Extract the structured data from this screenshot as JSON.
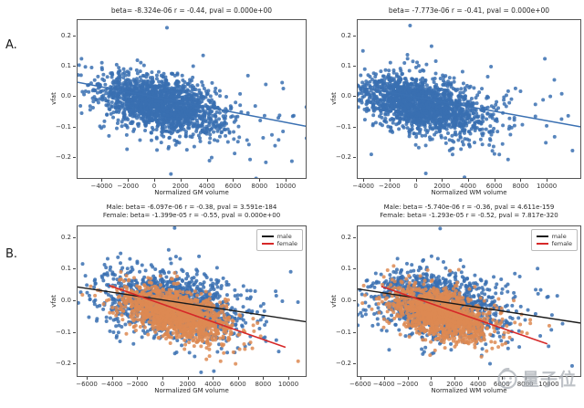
{
  "panels": {
    "a_label": "A.",
    "b_label": "B."
  },
  "watermark": {
    "text": "量子位",
    "icon": "qbitai-face-logo"
  },
  "colors": {
    "scatter_blue": "#3a70b2",
    "scatter_orange": "#dd8a52",
    "male_line": "#1a1a1a",
    "female_line": "#d62828"
  },
  "chart_data": [
    {
      "id": "top-left-gm-all",
      "type": "scatter",
      "title_lines": [
        "beta= -8.324e-06 r = -0.44, pval = 0.000e+00"
      ],
      "xlabel": "Normalized GM volume",
      "ylabel": "vfat",
      "xlim": [
        -5900,
        11450
      ],
      "ylim": [
        -0.265,
        0.253
      ],
      "grid": false,
      "xticks": [
        {
          "v": -4000,
          "label": "−4000"
        },
        {
          "v": -2000,
          "label": "−2000"
        },
        {
          "v": 0,
          "label": "0"
        },
        {
          "v": 2000,
          "label": "2000"
        },
        {
          "v": 4000,
          "label": "4000"
        },
        {
          "v": 6000,
          "label": "6000"
        },
        {
          "v": 8000,
          "label": "8000"
        },
        {
          "v": 10000,
          "label": "10000"
        }
      ],
      "yticks": [
        {
          "v": 0.2,
          "label": "0.2"
        },
        {
          "v": 0.1,
          "label": "0.1"
        },
        {
          "v": 0.0,
          "label": "0.0"
        },
        {
          "v": -0.1,
          "label": "−0.1"
        },
        {
          "v": -0.2,
          "label": "−0.2"
        }
      ],
      "fits": [
        {
          "series": "all",
          "beta": "-8.324e-06",
          "r": "-0.44",
          "pval": "0.000e+00"
        }
      ],
      "series": [
        {
          "name": "all",
          "color": "#3a70b2",
          "components": [
            {
              "n": 1700,
              "cx": 400,
              "cy": -0.022,
              "sx": 2300,
              "sy": 0.047,
              "r": -0.45
            },
            {
              "n": 150,
              "cx": 2600,
              "cy": -0.045,
              "sx": 3600,
              "sy": 0.075,
              "r": -0.25
            }
          ],
          "outliers": [
            [
              900,
              0.228
            ],
            [
              1200,
              -0.252
            ],
            [
              -5600,
              0.126
            ],
            [
              10400,
              -0.21
            ]
          ]
        }
      ],
      "lines": [
        {
          "series": "all",
          "color": "#3a70b2",
          "x1": -5900,
          "y1": 0.049,
          "x2": 11450,
          "y2": -0.095,
          "width": 1.5
        }
      ]
    },
    {
      "id": "top-right-wm-all",
      "type": "scatter",
      "title_lines": [
        "beta= -7.773e-06 r = -0.41, pval = 0.000e+00"
      ],
      "xlabel": "Normalized WM volume",
      "ylabel": "vfat",
      "xlim": [
        -4500,
        12500
      ],
      "ylim": [
        -0.265,
        0.253
      ],
      "grid": false,
      "xticks": [
        {
          "v": -4000,
          "label": "−4000"
        },
        {
          "v": -2000,
          "label": "−2000"
        },
        {
          "v": 0,
          "label": "0"
        },
        {
          "v": 2000,
          "label": "2000"
        },
        {
          "v": 4000,
          "label": "4000"
        },
        {
          "v": 6000,
          "label": "6000"
        },
        {
          "v": 8000,
          "label": "8000"
        },
        {
          "v": 10000,
          "label": "10000"
        }
      ],
      "yticks": [
        {
          "v": 0.2,
          "label": "0.2"
        },
        {
          "v": 0.1,
          "label": "0.1"
        },
        {
          "v": 0.0,
          "label": "0.0"
        },
        {
          "v": -0.1,
          "label": "−0.1"
        },
        {
          "v": -0.2,
          "label": "−0.2"
        }
      ],
      "fits": [
        {
          "series": "all",
          "beta": "-7.773e-06",
          "r": "-0.41",
          "pval": "0.000e+00"
        }
      ],
      "series": [
        {
          "name": "all",
          "color": "#3a70b2",
          "components": [
            {
              "n": 1700,
              "cx": 300,
              "cy": -0.022,
              "sx": 2250,
              "sy": 0.047,
              "r": -0.42
            },
            {
              "n": 150,
              "cx": 2800,
              "cy": -0.05,
              "sx": 3700,
              "sy": 0.075,
              "r": -0.25
            }
          ],
          "outliers": [
            [
              -500,
              0.235
            ],
            [
              -4100,
              0.152
            ],
            [
              700,
              -0.25
            ],
            [
              11900,
              -0.175
            ]
          ]
        }
      ],
      "lines": [
        {
          "series": "all",
          "color": "#3a70b2",
          "x1": -4500,
          "y1": 0.035,
          "x2": 12500,
          "y2": -0.097,
          "width": 1.5
        }
      ]
    },
    {
      "id": "bottom-left-gm-by-sex",
      "type": "scatter",
      "title_lines": [
        "Male: beta= -6.097e-06 r = -0.38, pval = 3.591e-184",
        "Female: beta= -1.399e-05 r = -0.55, pval = 0.000e+00"
      ],
      "xlabel": "Normalized GM volume",
      "ylabel": "vfat",
      "xlim": [
        -6800,
        11300
      ],
      "ylim": [
        -0.237,
        0.237
      ],
      "grid": false,
      "xticks": [
        {
          "v": -6000,
          "label": "−6000"
        },
        {
          "v": -4000,
          "label": "−4000"
        },
        {
          "v": -2000,
          "label": "−2000"
        },
        {
          "v": 0,
          "label": "0"
        },
        {
          "v": 2000,
          "label": "2000"
        },
        {
          "v": 4000,
          "label": "4000"
        },
        {
          "v": 6000,
          "label": "6000"
        },
        {
          "v": 8000,
          "label": "8000"
        },
        {
          "v": 10000,
          "label": "10000"
        }
      ],
      "yticks": [
        {
          "v": 0.2,
          "label": "0.2"
        },
        {
          "v": 0.1,
          "label": "0.1"
        },
        {
          "v": 0.0,
          "label": "0.0"
        },
        {
          "v": -0.1,
          "label": "−0.1"
        },
        {
          "v": -0.2,
          "label": "−0.2"
        }
      ],
      "fits": [
        {
          "series": "male",
          "beta": "-6.097e-06",
          "r": "-0.38",
          "pval": "3.591e-184"
        },
        {
          "series": "female",
          "beta": "-1.399e-05",
          "r": "-0.55",
          "pval": "0.000e+00"
        }
      ],
      "series": [
        {
          "name": "male",
          "color": "#3a70b2",
          "components": [
            {
              "n": 1250,
              "cx": 700,
              "cy": -0.012,
              "sx": 2700,
              "sy": 0.052,
              "r": -0.32
            },
            {
              "n": 110,
              "cx": 2200,
              "cy": -0.03,
              "sx": 4000,
              "sy": 0.075,
              "r": -0.2
            }
          ],
          "outliers": [
            [
              900,
              0.232
            ],
            [
              -6400,
              0.118
            ],
            [
              3000,
              -0.225
            ]
          ]
        },
        {
          "name": "female",
          "color": "#dd8a52",
          "components": [
            {
              "n": 1300,
              "cx": 900,
              "cy": -0.04,
              "sx": 2100,
              "sy": 0.042,
              "r": -0.5
            },
            {
              "n": 60,
              "cx": 1400,
              "cy": -0.05,
              "sx": 3100,
              "sy": 0.065,
              "r": -0.3
            }
          ],
          "outliers": [
            [
              10700,
              -0.19
            ]
          ]
        }
      ],
      "lines": [
        {
          "series": "male",
          "color": "#1a1a1a",
          "x1": -6800,
          "y1": 0.045,
          "x2": 11300,
          "y2": -0.065,
          "width": 1.4
        },
        {
          "series": "female",
          "color": "#d62828",
          "x1": -4300,
          "y1": 0.05,
          "x2": 9700,
          "y2": -0.146,
          "width": 1.6
        }
      ],
      "legend": {
        "position": "upper-right",
        "entries": [
          {
            "label": "male",
            "color": "#1a1a1a"
          },
          {
            "label": "female",
            "color": "#d62828"
          }
        ]
      }
    },
    {
      "id": "bottom-right-wm-by-sex",
      "type": "scatter",
      "title_lines": [
        "Male: beta= -5.740e-06 r = -0.36, pval = 4.611e-159",
        "Female: beta= -1.293e-05 r = -0.52, pval = 7.817e-320"
      ],
      "xlabel": "Normalized WM volume",
      "ylabel": "vfat",
      "xlim": [
        -6300,
        12600
      ],
      "ylim": [
        -0.237,
        0.237
      ],
      "grid": false,
      "xticks": [
        {
          "v": -6000,
          "label": "−6000"
        },
        {
          "v": -4000,
          "label": "−4000"
        },
        {
          "v": -2000,
          "label": "−2000"
        },
        {
          "v": 0,
          "label": "0"
        },
        {
          "v": 2000,
          "label": "2000"
        },
        {
          "v": 4000,
          "label": "4000"
        },
        {
          "v": 6000,
          "label": "6000"
        },
        {
          "v": 8000,
          "label": "8000"
        },
        {
          "v": 10000,
          "label": "10000"
        }
      ],
      "yticks": [
        {
          "v": 0.2,
          "label": "0.2"
        },
        {
          "v": 0.1,
          "label": "0.1"
        },
        {
          "v": 0.0,
          "label": "0.0"
        },
        {
          "v": -0.1,
          "label": "−0.1"
        },
        {
          "v": -0.2,
          "label": "−0.2"
        }
      ],
      "fits": [
        {
          "series": "male",
          "beta": "-5.740e-06",
          "r": "-0.36",
          "pval": "4.611e-159"
        },
        {
          "series": "female",
          "beta": "-1.293e-05",
          "r": "-0.52",
          "pval": "7.817e-320"
        }
      ],
      "series": [
        {
          "name": "male",
          "color": "#3a70b2",
          "components": [
            {
              "n": 1250,
              "cx": 500,
              "cy": -0.012,
              "sx": 2700,
              "sy": 0.052,
              "r": -0.3
            },
            {
              "n": 110,
              "cx": 2400,
              "cy": -0.03,
              "sx": 4100,
              "sy": 0.075,
              "r": -0.2
            }
          ],
          "outliers": [
            [
              700,
              0.23
            ],
            [
              11900,
              -0.205
            ]
          ]
        },
        {
          "name": "female",
          "color": "#dd8a52",
          "components": [
            {
              "n": 1300,
              "cx": 800,
              "cy": -0.04,
              "sx": 2100,
              "sy": 0.042,
              "r": -0.48
            },
            {
              "n": 60,
              "cx": 1500,
              "cy": -0.05,
              "sx": 3200,
              "sy": 0.065,
              "r": -0.3
            }
          ],
          "outliers": []
        }
      ],
      "lines": [
        {
          "series": "male",
          "color": "#1a1a1a",
          "x1": -6300,
          "y1": 0.039,
          "x2": 12600,
          "y2": -0.069,
          "width": 1.4
        },
        {
          "series": "female",
          "color": "#d62828",
          "x1": -4300,
          "y1": 0.047,
          "x2": 9800,
          "y2": -0.135,
          "width": 1.6
        }
      ],
      "legend": {
        "position": "upper-right",
        "entries": [
          {
            "label": "male",
            "color": "#1a1a1a"
          },
          {
            "label": "female",
            "color": "#d62828"
          }
        ]
      }
    }
  ]
}
